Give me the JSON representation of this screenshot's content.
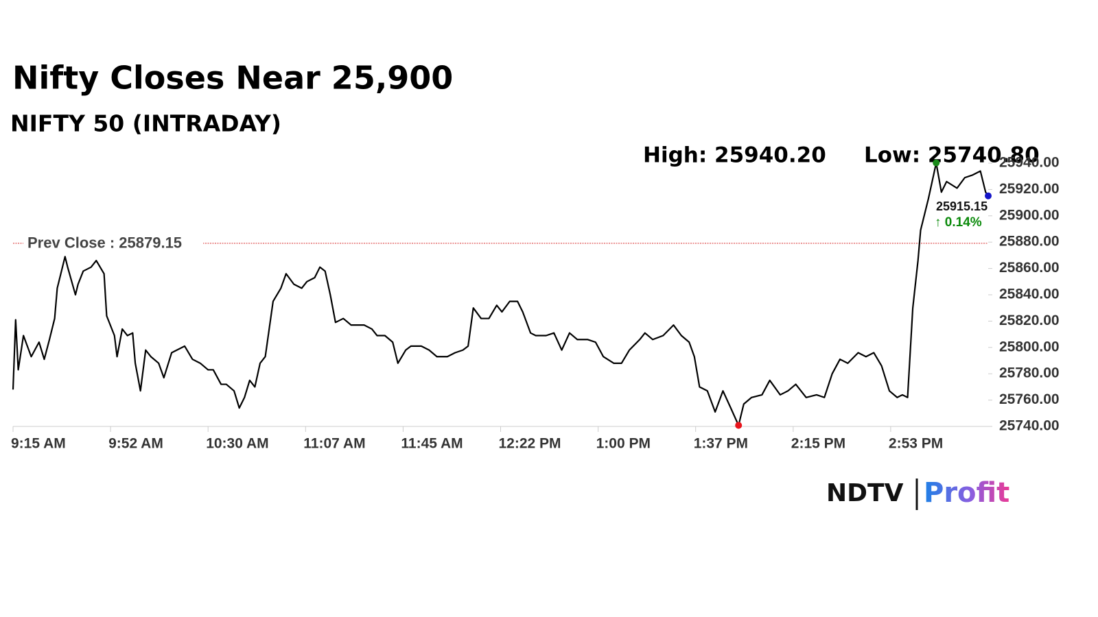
{
  "chart_data": {
    "type": "line",
    "title": "Nifty Closes Near 25,900",
    "subtitle": "NIFTY 50 (INTRADAY)",
    "x": [
      555,
      556,
      557,
      559,
      562,
      565,
      567,
      569,
      571,
      572,
      575,
      576,
      579,
      580,
      582,
      585,
      587,
      590,
      591,
      594,
      595,
      597,
      599,
      601,
      602,
      604,
      606,
      608,
      611,
      613,
      616,
      618,
      621,
      624,
      627,
      630,
      632,
      635,
      637,
      640,
      642,
      644,
      646,
      648,
      650,
      652,
      655,
      658,
      660,
      663,
      666,
      668,
      671,
      673,
      675,
      677,
      679,
      682,
      685,
      687,
      690,
      693,
      695,
      698,
      701,
      703,
      706,
      708,
      712,
      715,
      718,
      722,
      725,
      728,
      730,
      732,
      735,
      738,
      741,
      743,
      746,
      749,
      751,
      754,
      756,
      760,
      763,
      766,
      769,
      772,
      776,
      779,
      782,
      786,
      789,
      792,
      796,
      798,
      801,
      805,
      809,
      812,
      815,
      817,
      819,
      822,
      825,
      828,
      831,
      834,
      836,
      839,
      843,
      846,
      850,
      853,
      856,
      860,
      864,
      867,
      870,
      873,
      876,
      880,
      883,
      886,
      889,
      892,
      895,
      897,
      899,
      901,
      903,
      904,
      907,
      909,
      910,
      912,
      914,
      918,
      921,
      924,
      927,
      929,
      930
    ],
    "series": [
      {
        "color": "#000000",
        "values": [
          25768,
          25821,
          25783,
          25809,
          25793,
          25804,
          25791,
          25806,
          25822,
          25845,
          25869,
          25861,
          25840,
          25848,
          25858,
          25861,
          25866,
          25856,
          25824,
          25809,
          25793,
          25814,
          25809,
          25811,
          25788,
          25767,
          25798,
          25793,
          25788,
          25777,
          25796,
          25798,
          25801,
          25791,
          25788,
          25783,
          25783,
          25772,
          25772,
          25767,
          25754,
          25762,
          25775,
          25770,
          25788,
          25793,
          25835,
          25845,
          25856,
          25848,
          25845,
          25850,
          25853,
          25861,
          25858,
          25840,
          25819,
          25822,
          25817,
          25817,
          25817,
          25814,
          25809,
          25809,
          25804,
          25788,
          25798,
          25801,
          25801,
          25798,
          25793,
          25793,
          25796,
          25798,
          25801,
          25830,
          25822,
          25822,
          25832,
          25827,
          25835,
          25835,
          25827,
          25811,
          25809,
          25809,
          25811,
          25798,
          25811,
          25806,
          25806,
          25804,
          25793,
          25788,
          25788,
          25798,
          25806,
          25811,
          25806,
          25809,
          25817,
          25809,
          25804,
          25793,
          25770,
          25767,
          25751,
          25767,
          25754,
          25740.8,
          25757,
          25762,
          25764,
          25775,
          25764,
          25767,
          25772,
          25762,
          25764,
          25762,
          25780,
          25791,
          25788,
          25796,
          25793,
          25796,
          25786,
          25767,
          25762,
          25764,
          25762,
          25830,
          25866,
          25889,
          25913,
          25931,
          25940.2,
          25918,
          25926,
          25921,
          25929,
          25931,
          25934,
          25918,
          25915.15
        ]
      }
    ],
    "xlim": [
      555,
      930
    ],
    "xticks": [
      {
        "value": 555,
        "label": "9:15 AM"
      },
      {
        "value": 592.5,
        "label": "9:52 AM"
      },
      {
        "value": 630,
        "label": "10:30 AM"
      },
      {
        "value": 667.5,
        "label": "11:07 AM"
      },
      {
        "value": 705,
        "label": "11:45 AM"
      },
      {
        "value": 742.5,
        "label": "12:22 PM"
      },
      {
        "value": 780,
        "label": "1:00 PM"
      },
      {
        "value": 817.5,
        "label": "1:37 PM"
      },
      {
        "value": 855,
        "label": "2:15 PM"
      },
      {
        "value": 892.5,
        "label": "2:53 PM"
      }
    ],
    "ylim": [
      25740,
      25940
    ],
    "yticks": [
      {
        "value": 25740,
        "label": "25740.00"
      },
      {
        "value": 25760,
        "label": "25760.00"
      },
      {
        "value": 25780,
        "label": "25780.00"
      },
      {
        "value": 25800,
        "label": "25800.00"
      },
      {
        "value": 25820,
        "label": "25820.00"
      },
      {
        "value": 25840,
        "label": "25840.00"
      },
      {
        "value": 25860,
        "label": "25860.00"
      },
      {
        "value": 25880,
        "label": "25880.00"
      },
      {
        "value": 25900,
        "label": "25900.00"
      },
      {
        "value": 25920,
        "label": "25920.00"
      },
      {
        "value": 25940,
        "label": "25940.00"
      }
    ],
    "grid": false,
    "prev_close": {
      "value": 25879.15,
      "label": "Prev Close : 25879.15",
      "color": "#d62728"
    },
    "high": {
      "value": 25940.2,
      "label": "High: 25940.20",
      "color": "#1a8a1a"
    },
    "low": {
      "value": 25740.8,
      "label": "Low: 25740.80",
      "color": "#e8141c"
    },
    "last": {
      "value": 25915.15,
      "color": "#1515c8"
    },
    "change": {
      "value": 0.14,
      "label": "↑ 0.14%",
      "color": "#0b8a0b"
    }
  },
  "branding": {
    "name": "NDTV",
    "product": "Profit"
  }
}
